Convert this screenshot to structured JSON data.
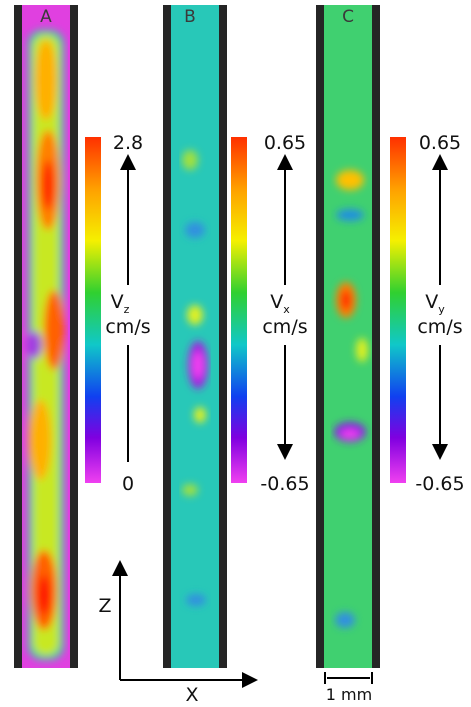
{
  "panels": [
    {
      "label": "A",
      "component": "V",
      "subscript": "z",
      "unit": "cm/s",
      "max": 2.8,
      "min": 0
    },
    {
      "label": "B",
      "component": "V",
      "subscript": "x",
      "unit": "cm/s",
      "max": 0.65,
      "min": -0.65
    },
    {
      "label": "C",
      "component": "V",
      "subscript": "y",
      "unit": "cm/s",
      "max": 0.65,
      "min": -0.65
    }
  ],
  "axes": {
    "vertical": "Z",
    "horizontal": "X"
  },
  "scale_bar": "1 mm"
}
